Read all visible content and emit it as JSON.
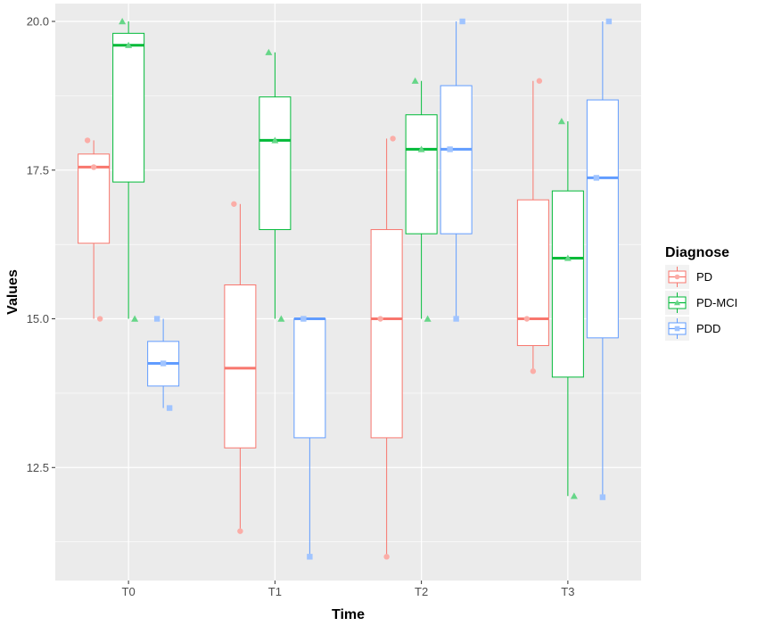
{
  "chart_data": {
    "type": "boxplot",
    "title": "",
    "xlabel": "Time",
    "ylabel": "Values",
    "categories": [
      "T0",
      "T1",
      "T2",
      "T3"
    ],
    "y_ticks": [
      12.5,
      15.0,
      17.5,
      20.0
    ],
    "y_tick_labels": [
      "12.5",
      "15.0",
      "17.5",
      "20.0"
    ],
    "ylim": [
      10.6,
      20.3
    ],
    "grid": true,
    "legend": {
      "title": "Diagnose",
      "placement": "right",
      "entries": [
        "PD",
        "PD-MCI",
        "PDD"
      ]
    },
    "series": [
      {
        "name": "PD",
        "color": "#F8766D",
        "marker": "circle",
        "boxes": [
          {
            "min": 15.0,
            "q1": 16.27,
            "median": 17.55,
            "q3": 17.77,
            "max": 18.0
          },
          {
            "min": 11.43,
            "q1": 12.83,
            "median": 14.17,
            "q3": 15.57,
            "max": 16.93
          },
          {
            "min": 11.0,
            "q1": 13.0,
            "median": 15.0,
            "q3": 16.5,
            "max": 18.03
          },
          {
            "min": 14.12,
            "q1": 14.55,
            "median": 15.0,
            "q3": 17.0,
            "max": 19.0
          }
        ],
        "points": [
          {
            "x": "T0",
            "y": 18.0
          },
          {
            "x": "T0",
            "y": 17.55
          },
          {
            "x": "T0",
            "y": 15.0
          },
          {
            "x": "T1",
            "y": 16.93
          },
          {
            "x": "T1",
            "y": 11.43
          },
          {
            "x": "T2",
            "y": 18.03
          },
          {
            "x": "T2",
            "y": 15.0
          },
          {
            "x": "T2",
            "y": 11.0
          },
          {
            "x": "T3",
            "y": 19.0
          },
          {
            "x": "T3",
            "y": 15.0
          },
          {
            "x": "T3",
            "y": 14.12
          }
        ]
      },
      {
        "name": "PD-MCI",
        "color": "#00BA38",
        "marker": "triangle",
        "boxes": [
          {
            "min": 15.0,
            "q1": 17.3,
            "median": 19.6,
            "q3": 19.8,
            "max": 20.0
          },
          {
            "min": 15.0,
            "q1": 16.5,
            "median": 18.0,
            "q3": 18.73,
            "max": 19.48
          },
          {
            "min": 15.0,
            "q1": 16.43,
            "median": 17.85,
            "q3": 18.43,
            "max": 19.0
          },
          {
            "min": 12.02,
            "q1": 14.02,
            "median": 16.02,
            "q3": 17.15,
            "max": 18.32
          }
        ],
        "points": [
          {
            "x": "T0",
            "y": 20.0
          },
          {
            "x": "T0",
            "y": 19.6
          },
          {
            "x": "T0",
            "y": 15.0
          },
          {
            "x": "T1",
            "y": 19.48
          },
          {
            "x": "T1",
            "y": 18.0
          },
          {
            "x": "T1",
            "y": 15.0
          },
          {
            "x": "T2",
            "y": 19.0
          },
          {
            "x": "T2",
            "y": 17.85
          },
          {
            "x": "T2",
            "y": 15.0
          },
          {
            "x": "T3",
            "y": 18.32
          },
          {
            "x": "T3",
            "y": 16.02
          },
          {
            "x": "T3",
            "y": 12.02
          }
        ]
      },
      {
        "name": "PDD",
        "color": "#619CFF",
        "marker": "square",
        "boxes": [
          {
            "min": 13.5,
            "q1": 13.87,
            "median": 14.25,
            "q3": 14.62,
            "max": 15.0
          },
          {
            "min": 11.0,
            "q1": 13.0,
            "median": 15.0,
            "q3": 15.0,
            "max": 15.0
          },
          {
            "min": 15.0,
            "q1": 16.43,
            "median": 17.85,
            "q3": 18.92,
            "max": 20.0
          },
          {
            "min": 12.0,
            "q1": 14.68,
            "median": 17.37,
            "q3": 18.68,
            "max": 20.0
          }
        ],
        "points": [
          {
            "x": "T0",
            "y": 15.0
          },
          {
            "x": "T0",
            "y": 14.25
          },
          {
            "x": "T0",
            "y": 13.5
          },
          {
            "x": "T1",
            "y": 15.0
          },
          {
            "x": "T1",
            "y": 11.0
          },
          {
            "x": "T2",
            "y": 20.0
          },
          {
            "x": "T2",
            "y": 17.85
          },
          {
            "x": "T2",
            "y": 15.0
          },
          {
            "x": "T3",
            "y": 20.0
          },
          {
            "x": "T3",
            "y": 17.37
          },
          {
            "x": "T3",
            "y": 12.0
          }
        ]
      }
    ]
  }
}
